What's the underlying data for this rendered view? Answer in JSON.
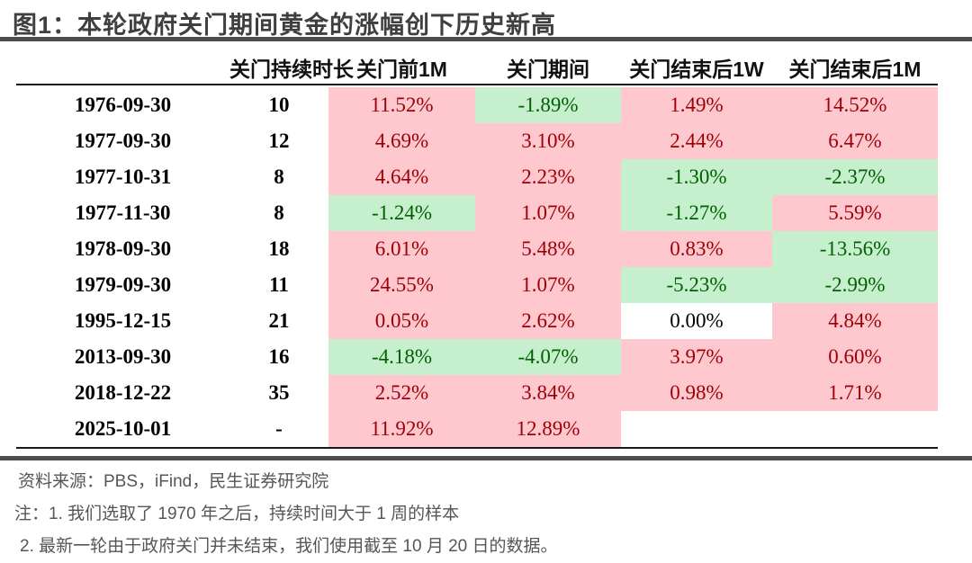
{
  "title": "图1：本轮政府关门期间黄金的涨幅创下历史新高",
  "table": {
    "columns": [
      "关门持续时长",
      "关门前1M",
      "关门期间",
      "关门结束后1W",
      "关门结束后1M"
    ],
    "rows": [
      {
        "date": "1976-09-30",
        "duration": "10",
        "cells": [
          {
            "value": "11.52%",
            "state": "bad"
          },
          {
            "value": "-1.89%",
            "state": "good"
          },
          {
            "value": "1.49%",
            "state": "bad"
          },
          {
            "value": "14.52%",
            "state": "bad"
          }
        ]
      },
      {
        "date": "1977-09-30",
        "duration": "12",
        "cells": [
          {
            "value": "4.69%",
            "state": "bad"
          },
          {
            "value": "3.10%",
            "state": "bad"
          },
          {
            "value": "2.44%",
            "state": "bad"
          },
          {
            "value": "6.47%",
            "state": "bad"
          }
        ]
      },
      {
        "date": "1977-10-31",
        "duration": "8",
        "cells": [
          {
            "value": "4.64%",
            "state": "bad"
          },
          {
            "value": "2.23%",
            "state": "bad"
          },
          {
            "value": "-1.30%",
            "state": "good"
          },
          {
            "value": "-2.37%",
            "state": "good"
          }
        ]
      },
      {
        "date": "1977-11-30",
        "duration": "8",
        "cells": [
          {
            "value": "-1.24%",
            "state": "good"
          },
          {
            "value": "1.07%",
            "state": "bad"
          },
          {
            "value": "-1.27%",
            "state": "good"
          },
          {
            "value": "5.59%",
            "state": "bad"
          }
        ]
      },
      {
        "date": "1978-09-30",
        "duration": "18",
        "cells": [
          {
            "value": "6.01%",
            "state": "bad"
          },
          {
            "value": "5.48%",
            "state": "bad"
          },
          {
            "value": "0.83%",
            "state": "bad"
          },
          {
            "value": "-13.56%",
            "state": "good"
          }
        ]
      },
      {
        "date": "1979-09-30",
        "duration": "11",
        "cells": [
          {
            "value": "24.55%",
            "state": "bad"
          },
          {
            "value": "1.07%",
            "state": "bad"
          },
          {
            "value": "-5.23%",
            "state": "good"
          },
          {
            "value": "-2.99%",
            "state": "good"
          }
        ]
      },
      {
        "date": "1995-12-15",
        "duration": "21",
        "cells": [
          {
            "value": "0.05%",
            "state": "bad"
          },
          {
            "value": "2.62%",
            "state": "bad"
          },
          {
            "value": "0.00%",
            "state": "neutral"
          },
          {
            "value": "4.84%",
            "state": "bad"
          }
        ]
      },
      {
        "date": "2013-09-30",
        "duration": "16",
        "cells": [
          {
            "value": "-4.18%",
            "state": "good"
          },
          {
            "value": "-4.07%",
            "state": "good"
          },
          {
            "value": "3.97%",
            "state": "bad"
          },
          {
            "value": "0.60%",
            "state": "bad"
          }
        ]
      },
      {
        "date": "2018-12-22",
        "duration": "35",
        "cells": [
          {
            "value": "2.52%",
            "state": "bad"
          },
          {
            "value": "3.84%",
            "state": "bad"
          },
          {
            "value": "0.98%",
            "state": "bad"
          },
          {
            "value": "1.71%",
            "state": "bad"
          }
        ]
      },
      {
        "date": "2025-10-01",
        "duration": "-",
        "cells": [
          {
            "value": "11.92%",
            "state": "bad"
          },
          {
            "value": "12.89%",
            "state": "bad"
          },
          {
            "value": "",
            "state": "empty"
          },
          {
            "value": "",
            "state": "empty"
          }
        ]
      }
    ]
  },
  "colors": {
    "bad_bg": "#FFC7CE",
    "bad_text": "#9C0006",
    "good_bg": "#C6EFCE",
    "good_text": "#006100",
    "neutral_text": "#000000",
    "rule": "#4c4c4c"
  },
  "footer": {
    "source": "资料来源：PBS，iFind，民生证券研究院",
    "note1": "注：1. 我们选取了 1970 年之后，持续时间大于 1 周的样本",
    "note2": "2. 最新一轮由于政府关门并未结束，我们使用截至 10 月 20 日的数据。"
  }
}
